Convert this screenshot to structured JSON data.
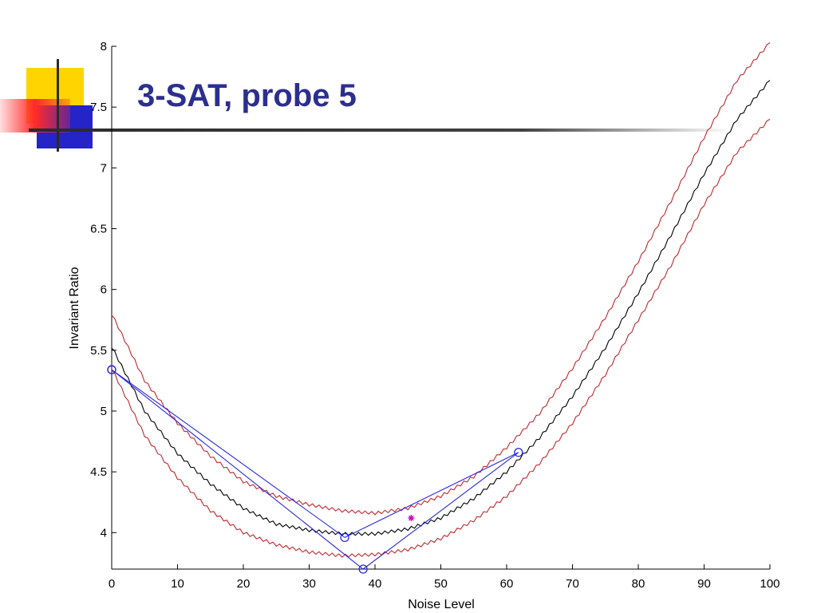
{
  "slide": {
    "title": "3-SAT, probe 5",
    "title_color": "#2b2f8f",
    "decoration_colors": {
      "yellow": "#ffd400",
      "red": "#ff2a2a",
      "blue": "#2424c8",
      "rule": "#2b2b2b"
    }
  },
  "chart_data": {
    "type": "line",
    "title": "",
    "xlabel": "Noise Level",
    "ylabel": "Invariant Ratio",
    "xlim": [
      0,
      100
    ],
    "ylim": [
      3.7,
      8.0
    ],
    "xticks": [
      0,
      10,
      20,
      30,
      40,
      50,
      60,
      70,
      80,
      90,
      100
    ],
    "yticks": [
      4,
      4.5,
      5,
      5.5,
      6,
      6.5,
      7,
      7.5,
      8
    ],
    "ytick_labels": [
      "4",
      "4.5",
      "5",
      "5.5",
      "6",
      "6.5",
      "7",
      "7.5",
      "8"
    ],
    "grid": false,
    "x": [
      0,
      5,
      10,
      15,
      20,
      25,
      30,
      35,
      40,
      45,
      50,
      55,
      60,
      65,
      70,
      75,
      80,
      85,
      90,
      95,
      100
    ],
    "series": [
      {
        "color": "#000000",
        "values": [
          5.53,
          5.0,
          4.65,
          4.4,
          4.2,
          4.07,
          4.02,
          3.99,
          3.99,
          4.03,
          4.12,
          4.28,
          4.5,
          4.78,
          5.12,
          5.52,
          5.97,
          6.45,
          6.95,
          7.4,
          7.72
        ]
      },
      {
        "color": "#c0282d",
        "values": [
          5.8,
          5.25,
          4.9,
          4.63,
          4.42,
          4.3,
          4.23,
          4.18,
          4.16,
          4.2,
          4.3,
          4.46,
          4.7,
          4.98,
          5.35,
          5.77,
          6.23,
          6.73,
          7.25,
          7.72,
          8.03
        ]
      },
      {
        "color": "#c0282d",
        "values": [
          5.35,
          4.8,
          4.45,
          4.18,
          4.0,
          3.9,
          3.84,
          3.81,
          3.82,
          3.86,
          3.95,
          4.1,
          4.3,
          4.57,
          4.9,
          5.3,
          5.75,
          6.2,
          6.7,
          7.13,
          7.4
        ]
      },
      {
        "color": "#2a2ae0",
        "marker": "o",
        "x": [
          0,
          38.2,
          61.8,
          35.4,
          0
        ],
        "values": [
          5.34,
          3.7,
          4.66,
          3.96,
          5.34
        ]
      }
    ],
    "annotations": [
      {
        "marker": "*",
        "color": "#cc00cc",
        "x": 45.5,
        "y": 4.12
      }
    ]
  }
}
